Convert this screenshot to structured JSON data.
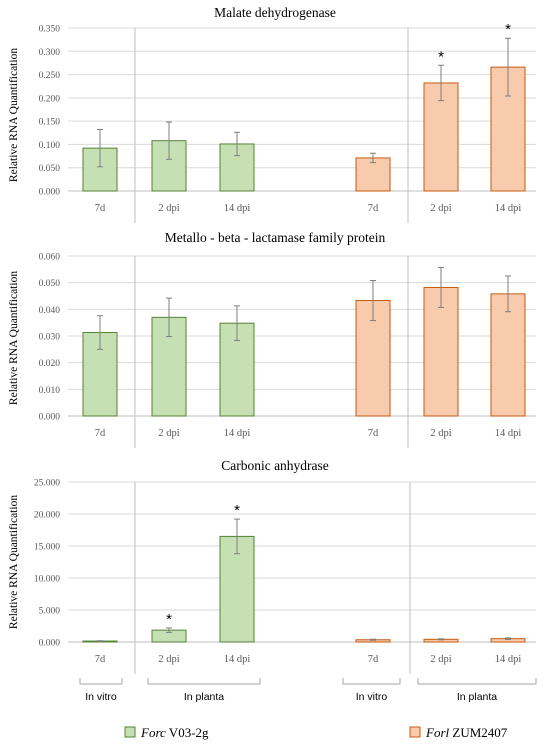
{
  "chart_data": [
    {
      "type": "bar",
      "title": "Malate dehydrogenase",
      "ylabel": "Relative RNA Quantification",
      "ylim": [
        0,
        0.35
      ],
      "yticks": [
        "0.000",
        "0.050",
        "0.100",
        "0.150",
        "0.200",
        "0.250",
        "0.300",
        "0.350"
      ],
      "categories": [
        "7d",
        "2 dpi",
        "14 dpi",
        "7d",
        "2 dpi",
        "14 dpi"
      ],
      "series": [
        {
          "name": "Forc V03-2g",
          "values": [
            0.092,
            0.108,
            0.101,
            null,
            null,
            null
          ],
          "errors": [
            0.04,
            0.04,
            0.025,
            null,
            null,
            null
          ]
        },
        {
          "name": "Forl ZUM2407",
          "values": [
            null,
            null,
            null,
            0.071,
            0.232,
            0.266
          ],
          "errors": [
            null,
            null,
            null,
            0.01,
            0.038,
            0.062
          ]
        }
      ],
      "significance": [
        "",
        "",
        "",
        "",
        "*",
        "*"
      ]
    },
    {
      "type": "bar",
      "title": "Metallo - beta - lactamase family protein",
      "ylabel": "Relative RNA Quantification",
      "ylim": [
        0,
        0.06
      ],
      "yticks": [
        "0.000",
        "0.010",
        "0.020",
        "0.030",
        "0.040",
        "0.050",
        "0.060"
      ],
      "categories": [
        "7d",
        "2 dpi",
        "14 dpi",
        "7d",
        "2 dpi",
        "14 dpi"
      ],
      "series": [
        {
          "name": "Forc V03-2g",
          "values": [
            0.0313,
            0.037,
            0.0348,
            null,
            null,
            null
          ],
          "errors": [
            0.0063,
            0.0072,
            0.0065,
            null,
            null,
            null
          ]
        },
        {
          "name": "Forl ZUM2407",
          "values": [
            null,
            null,
            null,
            0.0433,
            0.0482,
            0.0458
          ],
          "errors": [
            null,
            null,
            null,
            0.0075,
            0.0075,
            0.0067
          ]
        }
      ],
      "significance": [
        "",
        "",
        "",
        "",
        "",
        ""
      ]
    },
    {
      "type": "bar",
      "title": "Carbonic anhydrase",
      "ylabel": "Relative RNA Quantification",
      "ylim": [
        0,
        25
      ],
      "yticks": [
        "0.000",
        "5.000",
        "10.000",
        "15.000",
        "20.000",
        "25.000"
      ],
      "categories": [
        "7d",
        "2 dpi",
        "14 dpi",
        "7d",
        "2 dpi",
        "14 dpi"
      ],
      "series": [
        {
          "name": "Forc V03-2g",
          "values": [
            0.15,
            1.85,
            16.5,
            null,
            null,
            null
          ],
          "errors": [
            0.05,
            0.35,
            2.7,
            null,
            null,
            null
          ]
        },
        {
          "name": "Forl ZUM2407",
          "values": [
            null,
            null,
            null,
            0.35,
            0.42,
            0.52
          ],
          "errors": [
            null,
            null,
            null,
            0.08,
            0.08,
            0.12
          ]
        }
      ],
      "significance": [
        "",
        "*",
        "*",
        "",
        "",
        ""
      ]
    }
  ],
  "groups": [
    "In vitro",
    "In planta",
    "In vitro",
    "In planta"
  ],
  "legend": [
    {
      "italic": "Forc",
      "text": " V03-2g",
      "color": "#c6e0b4",
      "stroke": "#548235"
    },
    {
      "italic": "Forl",
      "text": " ZUM2407",
      "color": "#f8cbad",
      "stroke": "#c55a11"
    }
  ],
  "colors": {
    "forc_fill": "#c6e0b4",
    "forc_stroke": "#548235",
    "forl_fill": "#f8cbad",
    "forl_stroke": "#c55a11"
  }
}
